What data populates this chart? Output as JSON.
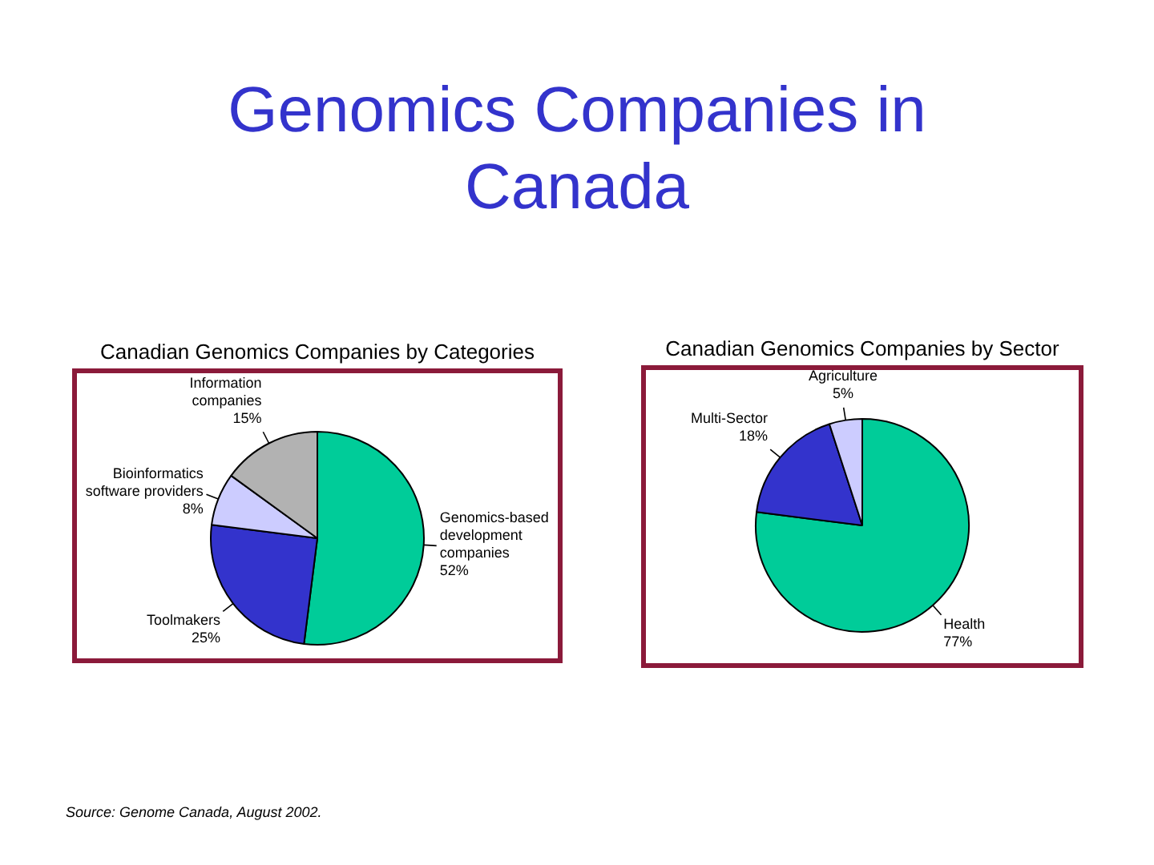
{
  "chart_data": [
    {
      "type": "other",
      "title": "Genomics Companies in Canada"
    },
    {
      "type": "pie",
      "title": "Canadian Genomics Companies by Categories",
      "categories": [
        "Genomics-based development companies",
        "Toolmakers",
        "Bioinformatics software providers",
        "Information companies"
      ],
      "values": [
        52,
        25,
        8,
        15
      ],
      "value_labels": [
        "52%",
        "25%",
        "8%",
        "15%"
      ],
      "colors": [
        "#00cc99",
        "#3333cc",
        "#ccccff",
        "#b2b2b2"
      ],
      "annotations": [
        "Source: Genome Canada, August 2002."
      ]
    },
    {
      "type": "pie",
      "title": "Canadian Genomics Companies by Sector",
      "categories": [
        "Health",
        "Multi-Sector",
        "Agriculture"
      ],
      "values": [
        77,
        18,
        5
      ],
      "value_labels": [
        "77%",
        "18%",
        "5%"
      ],
      "colors": [
        "#00cc99",
        "#3333cc",
        "#ccccff"
      ]
    }
  ]
}
